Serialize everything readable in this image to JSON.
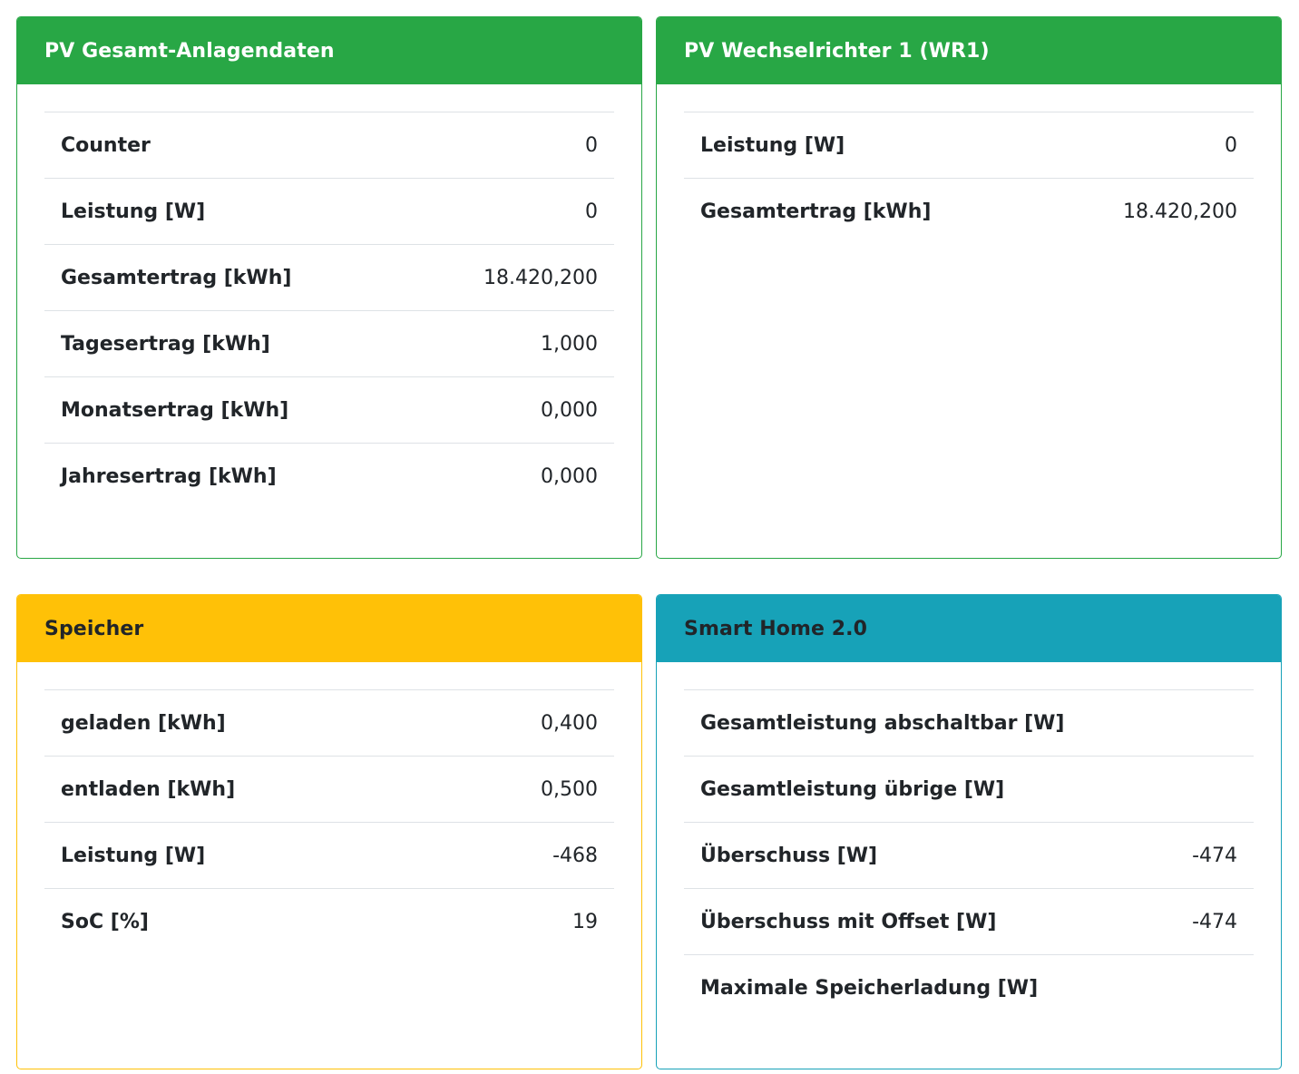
{
  "pv_total": {
    "title": "PV Gesamt-Anlagendaten",
    "rows": [
      {
        "label": "Counter",
        "value": "0"
      },
      {
        "label": "Leistung [W]",
        "value": "0"
      },
      {
        "label": "Gesamtertrag [kWh]",
        "value": "18.420,200"
      },
      {
        "label": "Tagesertrag [kWh]",
        "value": "1,000"
      },
      {
        "label": "Monatsertrag [kWh]",
        "value": "0,000"
      },
      {
        "label": "Jahresertrag [kWh]",
        "value": "0,000"
      }
    ]
  },
  "wr1": {
    "title": "PV Wechselrichter 1 (WR1)",
    "rows": [
      {
        "label": "Leistung [W]",
        "value": "0"
      },
      {
        "label": "Gesamtertrag [kWh]",
        "value": "18.420,200"
      }
    ]
  },
  "storage": {
    "title": "Speicher",
    "rows": [
      {
        "label": "geladen [kWh]",
        "value": "0,400"
      },
      {
        "label": "entladen [kWh]",
        "value": "0,500"
      },
      {
        "label": "Leistung [W]",
        "value": "-468"
      },
      {
        "label": "SoC [%]",
        "value": "19"
      }
    ]
  },
  "smarthome": {
    "title": "Smart Home 2.0",
    "rows": [
      {
        "label": "Gesamtleistung abschaltbar [W]",
        "value": ""
      },
      {
        "label": "Gesamtleistung übrige [W]",
        "value": ""
      },
      {
        "label": "Überschuss [W]",
        "value": "-474"
      },
      {
        "label": "Überschuss mit Offset [W]",
        "value": "-474"
      },
      {
        "label": "Maximale Speicherladung [W]",
        "value": ""
      }
    ]
  },
  "colors": {
    "success": "#28a745",
    "warning": "#ffc107",
    "info": "#17a2b8"
  }
}
